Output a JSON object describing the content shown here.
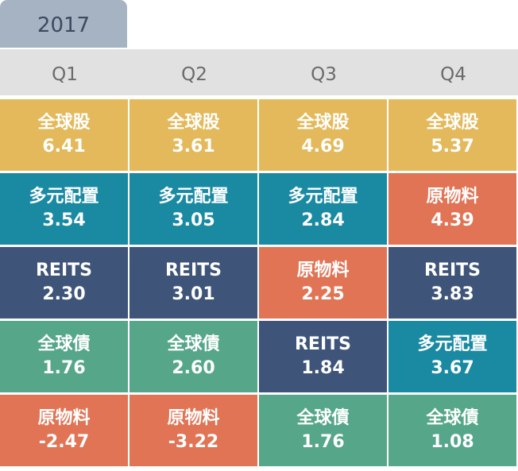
{
  "year": "2017",
  "quarters": [
    "Q1",
    "Q2",
    "Q3",
    "Q4"
  ],
  "colors": {
    "全球股": "#e3b95b",
    "多元配置": "#1a8aa3",
    "REITS": "#3f5479",
    "全球債": "#56a689",
    "原物料": "#e07455"
  },
  "columns": [
    [
      {
        "name": "全球股",
        "value": "6.41"
      },
      {
        "name": "多元配置",
        "value": "3.54"
      },
      {
        "name": "REITS",
        "value": "2.30"
      },
      {
        "name": "全球債",
        "value": "1.76"
      },
      {
        "name": "原物料",
        "value": "-2.47"
      }
    ],
    [
      {
        "name": "全球股",
        "value": "3.61"
      },
      {
        "name": "多元配置",
        "value": "3.05"
      },
      {
        "name": "REITS",
        "value": "3.01"
      },
      {
        "name": "全球債",
        "value": "2.60"
      },
      {
        "name": "原物料",
        "value": "-3.22"
      }
    ],
    [
      {
        "name": "全球股",
        "value": "4.69"
      },
      {
        "name": "多元配置",
        "value": "2.84"
      },
      {
        "name": "原物料",
        "value": "2.25"
      },
      {
        "name": "REITS",
        "value": "1.84"
      },
      {
        "name": "全球債",
        "value": "1.76"
      }
    ],
    [
      {
        "name": "全球股",
        "value": "5.37"
      },
      {
        "name": "原物料",
        "value": "4.39"
      },
      {
        "name": "REITS",
        "value": "3.83"
      },
      {
        "name": "多元配置",
        "value": "3.67"
      },
      {
        "name": "全球債",
        "value": "1.08"
      }
    ]
  ]
}
